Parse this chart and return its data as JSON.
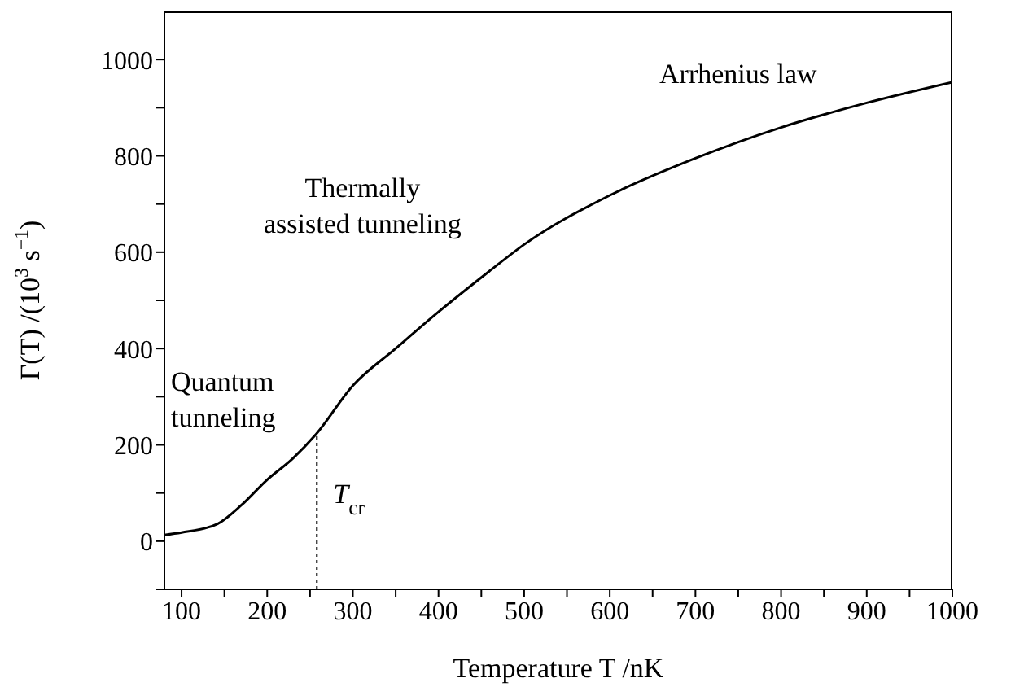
{
  "chart_data": {
    "type": "line",
    "xlabel": "Temperature T /nK",
    "ylabel": "Γ(T) /(10$^{3}$ s$^{−1}$)",
    "x": [
      80,
      100,
      142,
      170,
      199,
      230,
      257,
      300,
      350,
      400,
      459,
      500,
      600,
      700,
      800,
      900,
      1000
    ],
    "series": [
      {
        "color": "#000000",
        "values": [
          13,
          18,
          36,
          75,
          126,
          172,
          222,
          323,
          400,
          476,
          560,
          616,
          718,
          795,
          859,
          910,
          953
        ]
      }
    ],
    "xlim": [
      80,
      1000
    ],
    "ylim": [
      -100,
      1100
    ],
    "xticks": [
      100,
      {
        "value": 150,
        "label": null
      },
      200,
      {
        "value": 250,
        "label": null
      },
      300,
      {
        "value": 350,
        "label": null
      },
      400,
      {
        "value": 450,
        "label": null
      },
      500,
      {
        "value": 550,
        "label": null
      },
      600,
      {
        "value": 650,
        "label": null
      },
      700,
      {
        "value": 750,
        "label": null
      },
      800,
      {
        "value": 850,
        "label": null
      },
      900,
      {
        "value": 950,
        "label": null
      },
      1000
    ],
    "yticks": [
      {
        "value": -100,
        "label": null
      },
      0,
      {
        "value": 100,
        "label": null
      },
      200,
      {
        "value": 300,
        "label": null
      },
      400,
      {
        "value": 500,
        "label": null
      },
      600,
      {
        "value": 700,
        "label": null
      },
      800,
      {
        "value": 900,
        "label": null
      },
      1000
    ],
    "ref_lines": [
      {
        "axis": "x",
        "value": 258,
        "label": "T$_{cr}$",
        "line_style": "dotted"
      }
    ],
    "annotations": [
      "Quantum\ntunneling",
      "Thermally\nassisted tunneling",
      "Arrhenius law"
    ],
    "marker": "none",
    "line_style": "solid"
  }
}
